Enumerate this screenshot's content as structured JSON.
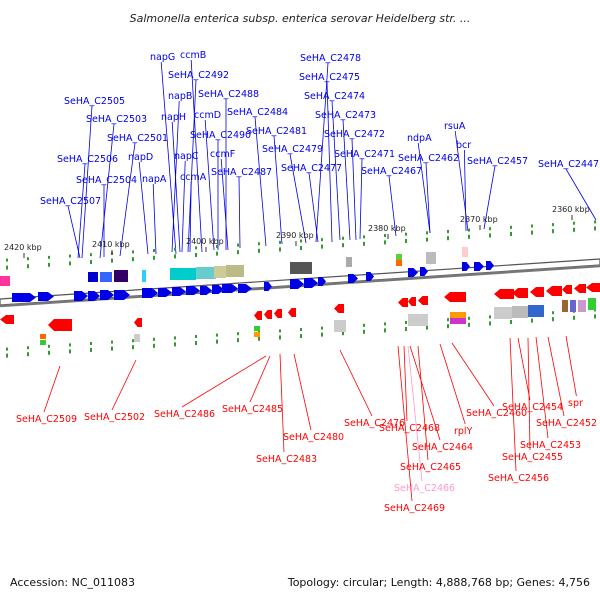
{
  "title": "Salmonella enterica subsp. enterica serovar Heidelberg str. ...",
  "footer": {
    "accession": "Accession: NC_011083",
    "summary": "Topology: circular; Length: 4,888,768 bp; Genes: 4,756"
  },
  "colors": {
    "plus_strand": "#0000e6",
    "minus_strand": "#ff0000",
    "pseudo": "#ff99cc",
    "backbone": "#808080",
    "tick_mark": "#339933"
  },
  "ticks": [
    "2420 kbp",
    "2410 kbp",
    "2400 kbp",
    "2390 kbp",
    "2380 kbp",
    "2370 kbp",
    "2360 kbp"
  ],
  "top_labels": [
    "SeHA_C2505",
    "SeHA_C2503",
    "SeHA_C2501",
    "SeHA_C2506",
    "SeHA_C2504",
    "SeHA_C2507",
    "napG",
    "ccmB",
    "napB",
    "napH",
    "napD",
    "napC",
    "napA",
    "ccmA",
    "SeHA_C2492",
    "SeHA_C2488",
    "ccmD",
    "SeHA_C2490",
    "ccmF",
    "SeHA_C2487",
    "SeHA_C2484",
    "SeHA_C2481",
    "SeHA_C2479",
    "SeHA_C2478",
    "SeHA_C2475",
    "SeHA_C2474",
    "SeHA_C2473",
    "SeHA_C2472",
    "SeHA_C2477",
    "SeHA_C2471",
    "SeHA_C2467",
    "ndpA",
    "SeHA_C2462",
    "rsuA",
    "bcr",
    "SeHA_C2457",
    "SeHA_C2447"
  ],
  "bottom_labels": [
    "SeHA_C2509",
    "SeHA_C2502",
    "SeHA_C2486",
    "SeHA_C2485",
    "SeHA_C2480",
    "SeHA_C2483",
    "SeHA_C2476",
    "SeHA_C2468",
    "SeHA_C2464",
    "SeHA_C2465",
    "SeHA_C2466",
    "SeHA_C2469",
    "rplY",
    "SeHA_C2460",
    "SeHA_C2454",
    "spr",
    "SeHA_C2452",
    "SeHA_C2453",
    "SeHA_C2455",
    "SeHA_C2456"
  ]
}
